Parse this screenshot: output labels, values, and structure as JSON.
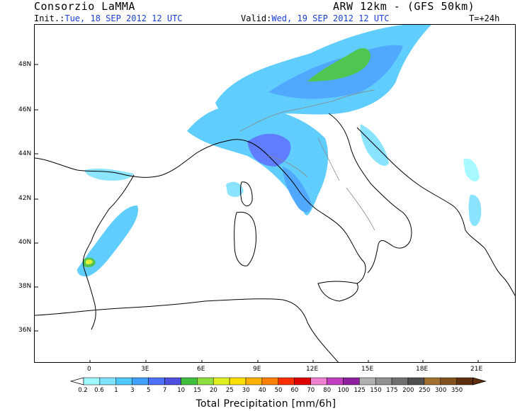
{
  "header": {
    "org": "Consorzio LaMMA",
    "model": "ARW 12km - (GFS 50km)",
    "init_label": "Init.:",
    "init_value": "Tue, 18 SEP 2012 12 UTC",
    "valid_label": "Valid:",
    "valid_value": "Wed, 19 SEP 2012 12 UTC",
    "lead": "T=+24h"
  },
  "axes": {
    "lat_labels": [
      "48N",
      "46N",
      "44N",
      "42N",
      "40N",
      "38N",
      "36N"
    ],
    "lon_labels": [
      "0",
      "3E",
      "6E",
      "9E",
      "12E",
      "15E",
      "18E",
      "21E"
    ]
  },
  "legend": {
    "title": "Total Precipitation [mm/6h]",
    "thresholds": [
      "0.2",
      "0.6",
      "1",
      "3",
      "5",
      "7",
      "10",
      "15",
      "20",
      "25",
      "30",
      "40",
      "50",
      "60",
      "70",
      "80",
      "100",
      "125",
      "150",
      "175",
      "200",
      "250",
      "300",
      "350"
    ],
    "colors": [
      "#9ff7ff",
      "#7fe2ff",
      "#4fc8ff",
      "#3fa0ff",
      "#4f6fff",
      "#5050e0",
      "#3fbf3f",
      "#8fdf3f",
      "#dfef1f",
      "#ffdf00",
      "#ffb000",
      "#ff7f00",
      "#ff2f00",
      "#df0000",
      "#ef7fcf",
      "#bf3fbf",
      "#8f1f9f",
      "#b0b0b0",
      "#909090",
      "#6f6f6f",
      "#4f4f4f",
      "#a0702f",
      "#80501f",
      "#5f3010"
    ]
  },
  "colors": {
    "sea": "#ffffff",
    "coast": "#000000",
    "border": "#888888",
    "text_highlight": "#1a3fd6"
  }
}
